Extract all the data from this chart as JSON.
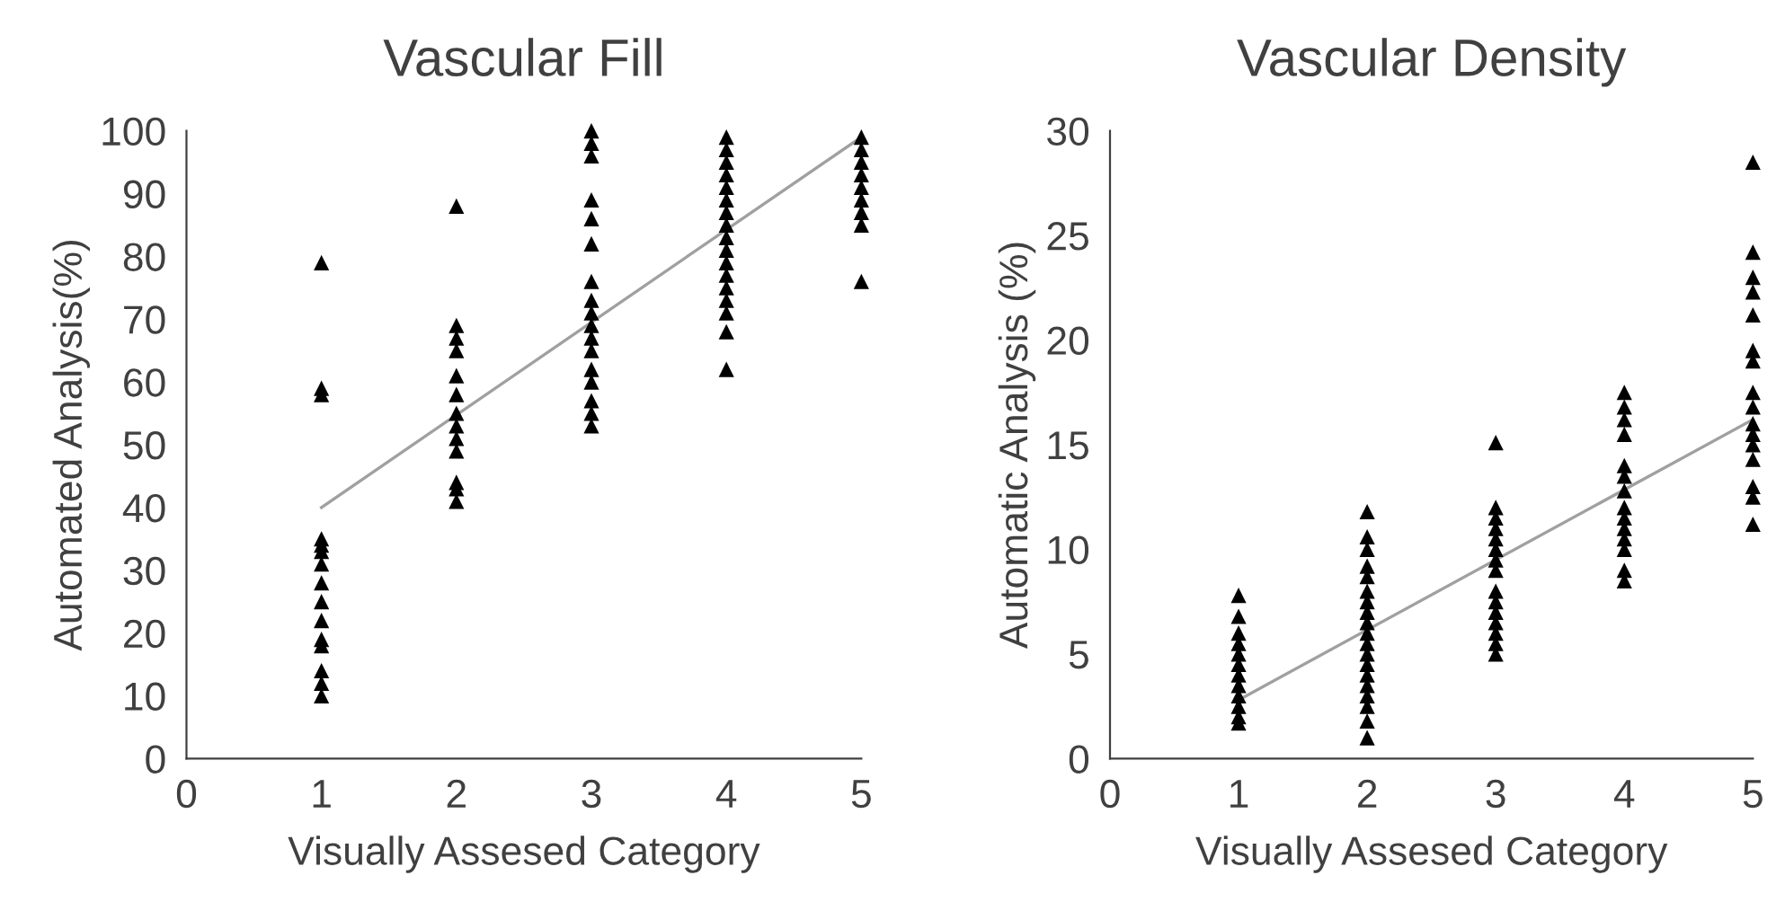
{
  "chart_data": [
    {
      "type": "scatter",
      "title": "Vascular Fill",
      "xlabel": "Visually Assesed Category",
      "ylabel": "Automated Analysis(%)",
      "xlim": [
        0,
        5
      ],
      "xticks": [
        0,
        1,
        2,
        3,
        4,
        5
      ],
      "ylim": [
        0,
        100
      ],
      "yticks": [
        0,
        10,
        20,
        30,
        40,
        50,
        60,
        70,
        80,
        90,
        100
      ],
      "grid": false,
      "legend": false,
      "series": [
        {
          "color": "#000000",
          "marker": "triangle",
          "x": [
            1,
            1,
            1,
            1,
            1,
            1,
            1,
            1,
            1,
            1,
            1,
            1,
            1,
            1,
            1,
            2,
            2,
            2,
            2,
            2,
            2,
            2,
            2,
            2,
            2,
            2,
            2,
            2,
            3,
            3,
            3,
            3,
            3,
            3,
            3,
            3,
            3,
            3,
            3,
            3,
            3,
            3,
            3,
            3,
            3,
            4,
            4,
            4,
            4,
            4,
            4,
            4,
            4,
            4,
            4,
            4,
            4,
            4,
            4,
            4,
            4,
            4,
            5,
            5,
            5,
            5,
            5,
            5,
            5,
            5,
            5
          ],
          "values": [
            79,
            59,
            58,
            35,
            34,
            33,
            31,
            28,
            25,
            22,
            19,
            18,
            14,
            12,
            10,
            88,
            69,
            67,
            65,
            61,
            58,
            55,
            53,
            51,
            49,
            44,
            43,
            41,
            100,
            98,
            96,
            89,
            86,
            82,
            76,
            73,
            71,
            69,
            67,
            65,
            62,
            60,
            57,
            55,
            53,
            99,
            97,
            95,
            93,
            91,
            89,
            87,
            85,
            83,
            81,
            79,
            77,
            75,
            73,
            71,
            68,
            62,
            99,
            97,
            95,
            93,
            91,
            89,
            87,
            85,
            76
          ]
        },
        {
          "type": "line",
          "color": "#a0a0a0",
          "x": [
            1,
            5
          ],
          "values": [
            40,
            99
          ]
        }
      ]
    },
    {
      "type": "scatter",
      "title": "Vascular Density",
      "xlabel": "Visually Assesed Category",
      "ylabel": "Automatic Analysis (%)",
      "xlim": [
        0,
        5
      ],
      "xticks": [
        0,
        1,
        2,
        3,
        4,
        5
      ],
      "ylim": [
        0,
        30
      ],
      "yticks": [
        0,
        5,
        10,
        15,
        20,
        25,
        30
      ],
      "grid": false,
      "legend": false,
      "series": [
        {
          "color": "#000000",
          "marker": "triangle",
          "x": [
            1,
            1,
            1,
            1,
            1,
            1,
            1,
            1,
            1,
            1,
            1,
            1,
            2,
            2,
            2,
            2,
            2,
            2,
            2,
            2,
            2,
            2,
            2,
            2,
            2,
            2,
            2,
            2,
            2,
            2,
            2,
            3,
            3,
            3,
            3,
            3,
            3,
            3,
            3,
            3,
            3,
            3,
            3,
            3,
            3,
            3,
            4,
            4,
            4,
            4,
            4,
            4,
            4,
            4,
            4,
            4,
            4,
            4,
            4,
            4,
            5,
            5,
            5,
            5,
            5,
            5,
            5,
            5,
            5,
            5,
            5,
            5,
            5,
            5,
            5,
            5
          ],
          "values": [
            7.8,
            6.8,
            6,
            5.5,
            5,
            4.5,
            4,
            3.5,
            3,
            2.5,
            2,
            1.7,
            11.8,
            10.6,
            10,
            9.2,
            8.7,
            8,
            7.5,
            7,
            6.5,
            6,
            5.5,
            5,
            4.5,
            4,
            3.5,
            3,
            2.5,
            1.8,
            1,
            15.1,
            12,
            11.5,
            11,
            10.5,
            10,
            9.5,
            9,
            8,
            7.5,
            7,
            6.5,
            6,
            5.5,
            5,
            17.5,
            16.8,
            16.2,
            15.5,
            14,
            13.5,
            12.8,
            12,
            11.5,
            11,
            10.5,
            10,
            9,
            8.5,
            28.5,
            24.2,
            23,
            22.3,
            21.2,
            19.5,
            19,
            17.5,
            16.8,
            16,
            15.5,
            15,
            14.3,
            13,
            12.5,
            11.2
          ]
        },
        {
          "type": "line",
          "color": "#a0a0a0",
          "x": [
            1,
            5
          ],
          "values": [
            2.8,
            16.2
          ]
        }
      ]
    }
  ]
}
